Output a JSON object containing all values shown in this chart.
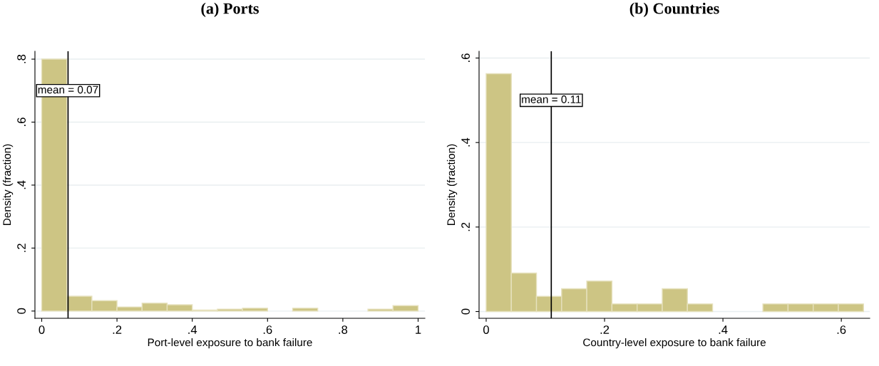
{
  "chart_data": [
    {
      "type": "histogram",
      "title": "(a) Ports",
      "xlabel": "Port-level exposure to bank failure",
      "ylabel": "Density (fraction)",
      "bins": [
        0,
        0.0667,
        0.1333,
        0.2,
        0.2667,
        0.3333,
        0.4,
        0.4667,
        0.5333,
        0.6,
        0.6667,
        0.7333,
        0.8,
        0.8667,
        0.9333,
        1
      ],
      "values": [
        0.8,
        0.047,
        0.033,
        0.013,
        0.025,
        0.02,
        0.003,
        0.006,
        0.009,
        0,
        0.009,
        0,
        0,
        0.006,
        0.017
      ],
      "color": "#cdc584",
      "xlim": [
        -0.018,
        1.018
      ],
      "ylim": [
        -0.023,
        0.825
      ],
      "xticks": [
        0,
        {
          "value": 0.2,
          "label": ".2"
        },
        {
          "value": 0.4,
          "label": ".4"
        },
        {
          "value": 0.6,
          "label": ".6"
        },
        {
          "value": 0.8,
          "label": ".8"
        },
        1
      ],
      "yticks": [
        0,
        {
          "value": 0.2,
          "label": ".2"
        },
        {
          "value": 0.4,
          "label": ".4"
        },
        {
          "value": 0.6,
          "label": ".6"
        },
        {
          "value": 0.8,
          "label": ".8"
        }
      ],
      "grid": "y",
      "ref_lines": [
        {
          "axis": "x",
          "value": 0.07,
          "label": "mean = 0.07",
          "color": "#000000"
        }
      ]
    },
    {
      "type": "histogram",
      "title": "(b) Countries",
      "xlabel": "Country-level exposure to bank failure",
      "ylabel": "Density (fraction)",
      "bins": [
        0,
        0.0425,
        0.085,
        0.1275,
        0.17,
        0.2125,
        0.255,
        0.2975,
        0.34,
        0.3825,
        0.425,
        0.4675,
        0.51,
        0.5525,
        0.595,
        0.6375
      ],
      "values": [
        0.563,
        0.091,
        0.036,
        0.054,
        0.072,
        0.018,
        0.018,
        0.054,
        0.018,
        0,
        0,
        0.018,
        0.018,
        0.018,
        0.018
      ],
      "color": "#cdc584",
      "xlim": [
        -0.012,
        0.648
      ],
      "ylim": [
        -0.016,
        0.616
      ],
      "xticks": [
        0,
        {
          "value": 0.2,
          "label": ".2"
        },
        {
          "value": 0.4,
          "label": ".4"
        },
        {
          "value": 0.6,
          "label": ".6"
        }
      ],
      "yticks": [
        0,
        {
          "value": 0.2,
          "label": ".2"
        },
        {
          "value": 0.4,
          "label": ".4"
        },
        {
          "value": 0.6,
          "label": ".6"
        }
      ],
      "grid": "y",
      "ref_lines": [
        {
          "axis": "x",
          "value": 0.11,
          "label": "mean = 0.11",
          "color": "#000000"
        }
      ]
    }
  ]
}
